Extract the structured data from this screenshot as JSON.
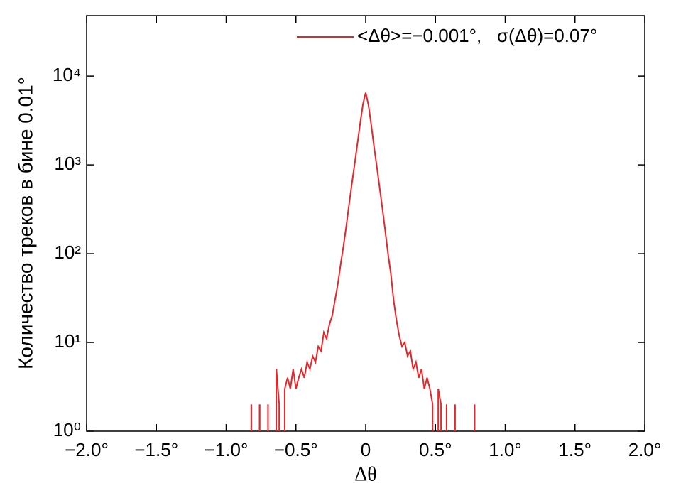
{
  "chart_data": {
    "type": "line",
    "xlabel": "Δθ",
    "ylabel": "Количество треков в бине 0.01°",
    "log_y": true,
    "xlim": [
      -2,
      2
    ],
    "ylim": [
      1,
      48000
    ],
    "xticks": [
      {
        "value": -2,
        "label": "−2.0°"
      },
      {
        "value": -1.5,
        "label": "−1.5°"
      },
      {
        "value": -1,
        "label": "−1.0°"
      },
      {
        "value": -0.5,
        "label": "−0.5°"
      },
      {
        "value": 0,
        "label": "0"
      },
      {
        "value": 0.5,
        "label": "0.5°"
      },
      {
        "value": 1,
        "label": "1.0°"
      },
      {
        "value": 1.5,
        "label": "1.5°"
      },
      {
        "value": 2,
        "label": "2.0°"
      }
    ],
    "yticks": [
      {
        "value": 1,
        "label": "10⁰"
      },
      {
        "value": 10,
        "label": "10¹"
      },
      {
        "value": 100,
        "label": "10²"
      },
      {
        "value": 1000,
        "label": "10³"
      },
      {
        "value": 10000,
        "label": "10⁴"
      }
    ],
    "legend": "upper right",
    "x": [
      -0.82,
      -0.8,
      -0.78,
      -0.76,
      -0.74,
      -0.72,
      -0.7,
      -0.68,
      -0.66,
      -0.64,
      -0.62,
      -0.6,
      -0.58,
      -0.56,
      -0.54,
      -0.52,
      -0.5,
      -0.48,
      -0.46,
      -0.44,
      -0.42,
      -0.4,
      -0.38,
      -0.36,
      -0.34,
      -0.32,
      -0.3,
      -0.28,
      -0.26,
      -0.24,
      -0.22,
      -0.2,
      -0.18,
      -0.16,
      -0.14,
      -0.12,
      -0.1,
      -0.08,
      -0.06,
      -0.04,
      -0.02,
      0,
      0.02,
      0.04,
      0.06,
      0.08,
      0.1,
      0.12,
      0.14,
      0.16,
      0.18,
      0.2,
      0.22,
      0.24,
      0.26,
      0.28,
      0.3,
      0.32,
      0.34,
      0.36,
      0.38,
      0.4,
      0.42,
      0.44,
      0.46,
      0.48,
      0.5,
      0.52,
      0.54,
      0.56,
      0.58,
      0.6,
      0.62,
      0.64,
      0.66,
      0.68,
      0.7,
      0.72,
      0.74,
      0.76,
      0.78,
      0.8
    ],
    "series": [
      {
        "name": "<Δθ>=−0.001°,   σ(Δθ)=0.07°",
        "color": "#e8262a",
        "values": [
          2,
          null,
          null,
          2,
          null,
          null,
          2,
          null,
          null,
          5,
          2,
          null,
          3,
          4,
          3,
          5,
          3,
          4,
          5,
          4,
          6,
          5,
          7,
          6,
          9,
          8,
          13,
          11,
          16,
          20,
          30,
          45,
          75,
          120,
          200,
          350,
          600,
          1000,
          1700,
          2900,
          4800,
          6500,
          4700,
          2800,
          1600,
          950,
          550,
          320,
          180,
          100,
          60,
          30,
          18,
          12,
          9,
          10,
          7,
          8,
          5,
          6,
          4,
          5,
          3,
          4,
          3,
          2,
          null,
          3,
          2,
          null,
          2,
          null,
          null,
          2,
          null,
          null,
          null,
          null,
          null,
          null,
          2,
          null
        ]
      }
    ]
  }
}
